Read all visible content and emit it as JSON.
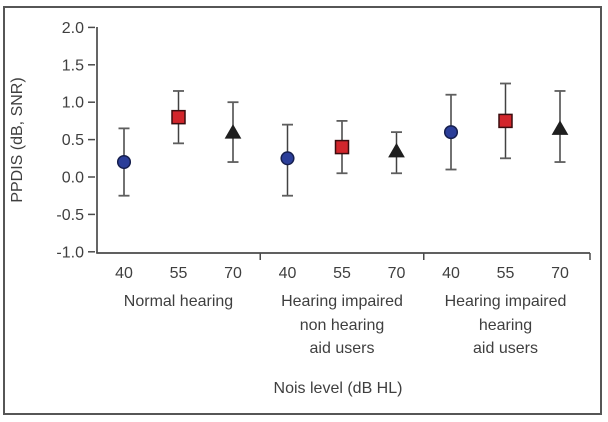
{
  "figure": {
    "frame_border_color": "#565656",
    "background_color": "#ffffff"
  },
  "chart_data": {
    "type": "scatter",
    "subtype": "point-estimates-with-error-bars",
    "title": "",
    "ylabel": "PPDIS (dB, SNR)",
    "xlabel": "Nois level (dB HL)",
    "ylim": [
      -1.0,
      2.0
    ],
    "ytick_values": [
      2.0,
      1.5,
      1.0,
      0.5,
      0.0,
      -0.5,
      -1.0
    ],
    "ytick_labels": [
      "2.0",
      "1.5",
      "1.0",
      "0.5",
      "0.0",
      "-0.5",
      "-1.0"
    ],
    "grid": false,
    "legend_position": "none",
    "noise_levels": [
      "40",
      "55",
      "70"
    ],
    "marker_styles": [
      {
        "level": "40",
        "marker": "circle",
        "fill": "#2b3e99",
        "stroke": "#161f4e"
      },
      {
        "level": "55",
        "marker": "square",
        "fill": "#d2262c",
        "stroke": "#3a0d0f"
      },
      {
        "level": "70",
        "marker": "triangle",
        "fill": "#1f1f1f",
        "stroke": "#1f1f1f"
      }
    ],
    "groups": [
      {
        "label_lines": [
          "Normal hearing"
        ],
        "points": [
          {
            "level": "40",
            "value": 0.2,
            "ci_low": -0.25,
            "ci_high": 0.65
          },
          {
            "level": "55",
            "value": 0.8,
            "ci_low": 0.45,
            "ci_high": 1.15
          },
          {
            "level": "70",
            "value": 0.6,
            "ci_low": 0.2,
            "ci_high": 1.0
          }
        ]
      },
      {
        "label_lines": [
          "Hearing impaired",
          "non hearing",
          "aid users"
        ],
        "points": [
          {
            "level": "40",
            "value": 0.25,
            "ci_low": -0.25,
            "ci_high": 0.7
          },
          {
            "level": "55",
            "value": 0.4,
            "ci_low": 0.05,
            "ci_high": 0.75
          },
          {
            "level": "70",
            "value": 0.35,
            "ci_low": 0.05,
            "ci_high": 0.6
          }
        ]
      },
      {
        "label_lines": [
          "Hearing impaired",
          "hearing",
          "aid users"
        ],
        "points": [
          {
            "level": "40",
            "value": 0.6,
            "ci_low": 0.1,
            "ci_high": 1.1
          },
          {
            "level": "55",
            "value": 0.75,
            "ci_low": 0.25,
            "ci_high": 1.25
          },
          {
            "level": "70",
            "value": 0.65,
            "ci_low": 0.2,
            "ci_high": 1.15
          }
        ]
      }
    ],
    "colors": {
      "axis": "#4a4a4a",
      "text": "#3f3f3f",
      "errorbar_line": "#424242",
      "errorbar_cap": "#5e5e5e"
    }
  }
}
